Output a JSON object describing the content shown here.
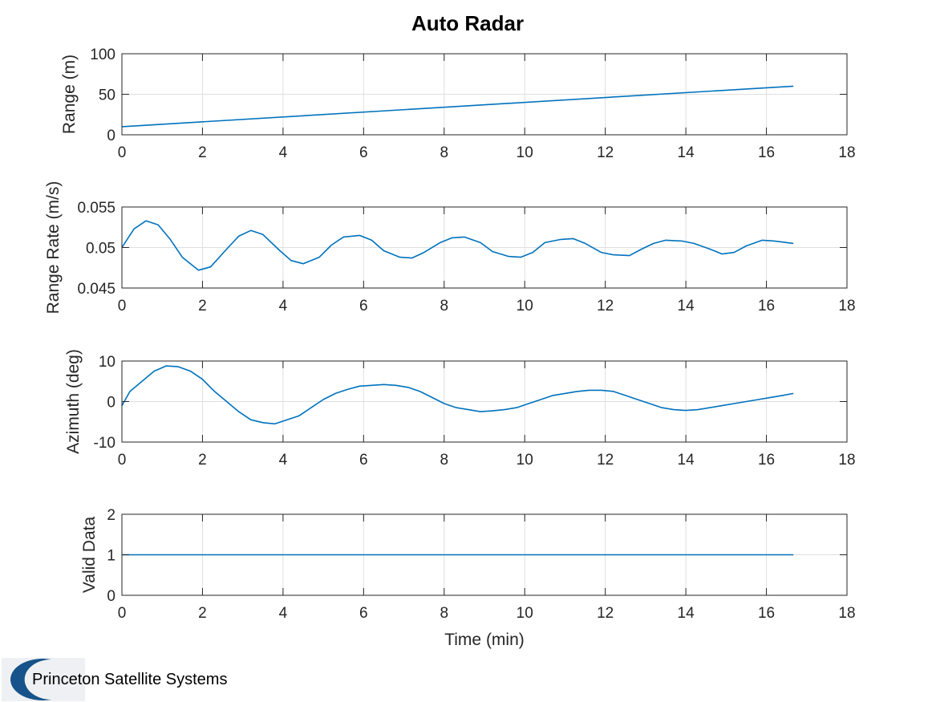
{
  "figure": {
    "title": "Auto Radar",
    "logo_text": "Princeton Satellite Systems",
    "line_color": "#0072bd"
  },
  "chart_data": [
    {
      "type": "line",
      "title": "Auto Radar",
      "xlabel": "",
      "ylabel": "Range (m)",
      "xlim": [
        0,
        18
      ],
      "ylim": [
        0,
        100
      ],
      "xticks": [
        0,
        2,
        4,
        6,
        8,
        10,
        12,
        14,
        16,
        18
      ],
      "xtick_labels": [
        "0",
        "2",
        "4",
        "6",
        "8",
        "10",
        "12",
        "14",
        "16",
        "18"
      ],
      "yticks": [
        0,
        50,
        100
      ],
      "ytick_labels": [
        "0",
        "50",
        "100"
      ],
      "grid": true,
      "series": [
        {
          "x": [
            0,
            16.67
          ],
          "y": [
            10,
            60
          ]
        }
      ]
    },
    {
      "type": "line",
      "xlabel": "",
      "ylabel": "Range Rate (m/s)",
      "xlim": [
        0,
        18
      ],
      "ylim": [
        0.045,
        0.055
      ],
      "xticks": [
        0,
        2,
        4,
        6,
        8,
        10,
        12,
        14,
        16,
        18
      ],
      "xtick_labels": [
        "0",
        "2",
        "4",
        "6",
        "8",
        "10",
        "12",
        "14",
        "16",
        "18"
      ],
      "yticks": [
        0.045,
        0.05,
        0.055
      ],
      "ytick_labels": [
        "0.045",
        "0.05",
        "0.055"
      ],
      "grid": true,
      "series": [
        {
          "x": [
            0,
            0.3,
            0.6,
            0.9,
            1.2,
            1.5,
            1.9,
            2.2,
            2.6,
            2.9,
            3.2,
            3.5,
            3.9,
            4.2,
            4.5,
            4.9,
            5.2,
            5.5,
            5.9,
            6.2,
            6.5,
            6.9,
            7.2,
            7.5,
            7.9,
            8.2,
            8.5,
            8.9,
            9.2,
            9.6,
            9.9,
            10.2,
            10.5,
            10.9,
            11.2,
            11.5,
            11.9,
            12.2,
            12.6,
            12.9,
            13.2,
            13.5,
            13.9,
            14.2,
            14.6,
            14.9,
            15.2,
            15.5,
            15.9,
            16.2,
            16.67
          ],
          "y": [
            0.05,
            0.0523,
            0.0533,
            0.0528,
            0.051,
            0.0488,
            0.0472,
            0.0476,
            0.0498,
            0.0514,
            0.0521,
            0.0516,
            0.0497,
            0.0484,
            0.048,
            0.0488,
            0.0503,
            0.0513,
            0.0515,
            0.0509,
            0.0496,
            0.0488,
            0.0487,
            0.0494,
            0.0506,
            0.0512,
            0.0513,
            0.0506,
            0.0495,
            0.0489,
            0.0488,
            0.0494,
            0.0506,
            0.051,
            0.0511,
            0.0505,
            0.0494,
            0.0491,
            0.049,
            0.0498,
            0.0505,
            0.0509,
            0.0508,
            0.0505,
            0.0498,
            0.0492,
            0.0494,
            0.0502,
            0.0509,
            0.0508,
            0.0505
          ]
        }
      ]
    },
    {
      "type": "line",
      "xlabel": "",
      "ylabel": "Azimuth (deg)",
      "xlim": [
        0,
        18
      ],
      "ylim": [
        -10,
        10
      ],
      "xticks": [
        0,
        2,
        4,
        6,
        8,
        10,
        12,
        14,
        16,
        18
      ],
      "xtick_labels": [
        "0",
        "2",
        "4",
        "6",
        "8",
        "10",
        "12",
        "14",
        "16",
        "18"
      ],
      "yticks": [
        -10,
        0,
        10
      ],
      "ytick_labels": [
        "-10",
        "0",
        "10"
      ],
      "grid": true,
      "series": [
        {
          "x": [
            0,
            0.2,
            0.5,
            0.8,
            1.1,
            1.4,
            1.7,
            2.0,
            2.3,
            2.6,
            2.9,
            3.2,
            3.5,
            3.8,
            4.1,
            4.4,
            4.7,
            5.0,
            5.3,
            5.6,
            5.9,
            6.2,
            6.5,
            6.8,
            7.1,
            7.4,
            7.7,
            8.0,
            8.3,
            8.6,
            8.9,
            9.2,
            9.5,
            9.8,
            10.1,
            10.4,
            10.7,
            11.0,
            11.3,
            11.6,
            11.9,
            12.2,
            12.5,
            12.8,
            13.1,
            13.4,
            13.7,
            14.0,
            14.3,
            14.6,
            14.9,
            15.2,
            15.5,
            15.8,
            16.1,
            16.4,
            16.67
          ],
          "y": [
            -1.0,
            2.5,
            5.0,
            7.5,
            8.8,
            8.6,
            7.5,
            5.5,
            2.5,
            0.0,
            -2.5,
            -4.5,
            -5.2,
            -5.5,
            -4.5,
            -3.5,
            -1.5,
            0.5,
            2.0,
            3.0,
            3.8,
            4.0,
            4.2,
            4.0,
            3.5,
            2.5,
            1.0,
            -0.5,
            -1.5,
            -2.0,
            -2.5,
            -2.3,
            -2.0,
            -1.5,
            -0.5,
            0.5,
            1.5,
            2.0,
            2.5,
            2.8,
            2.8,
            2.5,
            1.5,
            0.5,
            -0.5,
            -1.5,
            -2.0,
            -2.2,
            -2.0,
            -1.5,
            -1.0,
            -0.5,
            0.0,
            0.5,
            1.0,
            1.5,
            2.0
          ]
        }
      ]
    },
    {
      "type": "line",
      "xlabel": "Time (min)",
      "ylabel": "Valid Data",
      "xlim": [
        0,
        18
      ],
      "ylim": [
        0,
        2
      ],
      "xticks": [
        0,
        2,
        4,
        6,
        8,
        10,
        12,
        14,
        16,
        18
      ],
      "xtick_labels": [
        "0",
        "2",
        "4",
        "6",
        "8",
        "10",
        "12",
        "14",
        "16",
        "18"
      ],
      "yticks": [
        0,
        1,
        2
      ],
      "ytick_labels": [
        "0",
        "1",
        "2"
      ],
      "grid": true,
      "series": [
        {
          "x": [
            0,
            16.67
          ],
          "y": [
            1,
            1
          ]
        }
      ]
    }
  ]
}
